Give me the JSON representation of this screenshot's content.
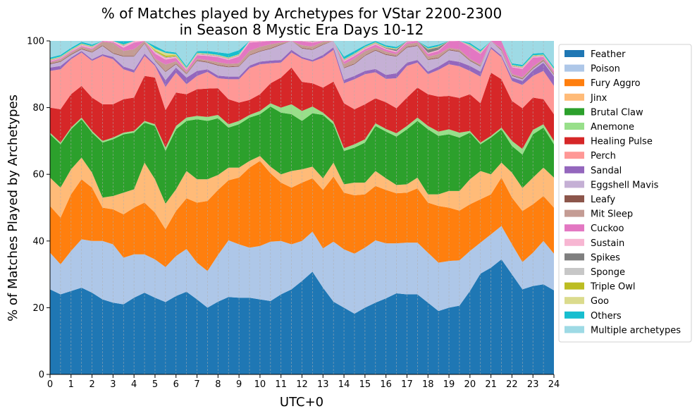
{
  "chart_data": {
    "type": "area",
    "stacked": true,
    "title": "% of Matches played by Archetypes for VStar 2200-2300\nin Season 8 Mystic Era Days 10-12",
    "xlabel": "UTC+0",
    "ylabel": "% of Matches Played by Archetypes",
    "xlim": [
      0,
      24
    ],
    "ylim": [
      0,
      100
    ],
    "x_ticks": [
      0,
      1,
      2,
      3,
      4,
      5,
      6,
      7,
      8,
      9,
      10,
      11,
      12,
      13,
      14,
      15,
      16,
      17,
      18,
      19,
      20,
      21,
      22,
      23,
      24
    ],
    "y_ticks": [
      0,
      20,
      40,
      60,
      80,
      100
    ],
    "grid": "vertical dashed at every half hour",
    "legend_position": "right, outside plot",
    "x": [
      0,
      0.5,
      1,
      1.5,
      2,
      2.5,
      3,
      3.5,
      4,
      4.5,
      5,
      5.5,
      6,
      6.5,
      7,
      7.5,
      8,
      8.5,
      9,
      9.5,
      10,
      10.5,
      11,
      11.5,
      12,
      12.5,
      13,
      13.5,
      14,
      14.5,
      15,
      15.5,
      16,
      16.5,
      17,
      17.5,
      18,
      18.5,
      19,
      19.5,
      20,
      20.5,
      21,
      21.5,
      22,
      22.5,
      23,
      23.5,
      24
    ],
    "series": [
      {
        "name": "Feather",
        "color": "#1f77b4",
        "values": [
          25.5,
          24,
          25,
          26,
          24.5,
          22.5,
          21.5,
          21,
          23,
          24.5,
          23,
          21.7,
          23.5,
          24.8,
          22.5,
          20,
          21.8,
          23.2,
          23,
          23,
          22.5,
          22,
          24,
          25.5,
          28,
          30.8,
          26,
          21.8,
          20,
          18.2,
          20,
          21.5,
          22.8,
          24.3,
          24,
          24,
          21.5,
          19,
          20,
          20.6,
          25,
          30.2,
          32,
          34.5,
          30,
          25.5,
          26.5,
          27,
          25.2
        ]
      },
      {
        "name": "Poison",
        "color": "#aec7e8",
        "values": [
          11,
          9,
          12,
          14.5,
          15.5,
          17.5,
          17.5,
          14,
          13,
          11.5,
          11.5,
          10.5,
          12,
          12.8,
          11,
          11,
          14,
          17,
          16,
          15,
          16,
          17.8,
          16,
          13.5,
          12,
          12,
          11.8,
          18,
          17.5,
          18,
          18,
          18.7,
          16.5,
          15,
          15.5,
          15.5,
          15,
          14.5,
          14,
          13.6,
          12,
          9.3,
          10,
          10,
          9,
          8.2,
          10,
          13,
          11
        ]
      },
      {
        "name": "Fury Aggro",
        "color": "#ff7f0e",
        "values": [
          14,
          14,
          17,
          18,
          16,
          10,
          10.5,
          13,
          14,
          15.5,
          14,
          11.3,
          13.5,
          15.2,
          18,
          21,
          19.5,
          18,
          20,
          24,
          25.5,
          20.5,
          17.5,
          17,
          17.5,
          16,
          17.5,
          19.5,
          17,
          17.5,
          16,
          16.3,
          16,
          15,
          15,
          16.3,
          15,
          17,
          16,
          14.9,
          14,
          13,
          12,
          14.5,
          14,
          15.3,
          14.5,
          13.5,
          13.8
        ]
      },
      {
        "name": "Jinx",
        "color": "#ffbb78",
        "values": [
          8.5,
          9,
          7.5,
          6.5,
          4.5,
          3,
          4,
          6.5,
          5.5,
          12,
          10,
          7.7,
          6.5,
          8.2,
          7,
          6.5,
          4.5,
          3.8,
          3,
          2,
          1.5,
          2,
          2.5,
          5,
          4,
          3.5,
          3.5,
          4.2,
          2.5,
          3.8,
          3.5,
          4.5,
          3.5,
          2.5,
          2.5,
          3.2,
          2.5,
          3.5,
          5,
          5.9,
          7.5,
          8.5,
          6,
          4.5,
          7.5,
          6.9,
          8,
          8.5,
          9
        ]
      },
      {
        "name": "Brutal Claw",
        "color": "#2ca02c",
        "values": [
          13,
          13,
          12,
          11.5,
          12,
          16.5,
          17,
          17.5,
          17,
          12,
          16,
          15.8,
          18,
          15,
          18,
          17.5,
          17,
          12,
          13,
          13,
          12.5,
          18,
          18.5,
          17,
          14.5,
          16,
          19,
          11.5,
          10,
          10.5,
          12,
          13.5,
          14,
          14.5,
          16.5,
          17,
          19.5,
          17.5,
          17,
          16,
          14,
          8,
          11,
          10,
          8,
          10,
          13,
          12,
          10
        ]
      },
      {
        "name": "Anemone",
        "color": "#98df8a",
        "values": [
          0.5,
          0.5,
          0.5,
          0.5,
          0.5,
          0.5,
          0.5,
          0.5,
          0.5,
          0.5,
          0.5,
          1,
          1,
          1,
          1,
          1.2,
          1,
          1,
          1,
          0.8,
          1,
          1,
          1.5,
          3,
          3,
          2,
          0.7,
          0.8,
          0.8,
          1,
          1,
          0.8,
          0.8,
          1,
          1,
          1,
          1,
          1.3,
          1.5,
          1.5,
          0.5,
          0.5,
          0.5,
          0.5,
          1.5,
          1.7,
          1.3,
          1,
          1
        ]
      },
      {
        "name": "Healing Pulse",
        "color": "#d62728",
        "values": [
          7.5,
          10,
          10,
          9.5,
          10,
          11,
          10,
          10,
          10,
          13.5,
          14,
          11.2,
          10,
          7,
          8,
          8.5,
          8,
          7.5,
          5.5,
          4.5,
          5,
          6,
          9,
          11,
          8.7,
          7,
          7.5,
          12,
          13.5,
          10.5,
          10.5,
          7.5,
          8,
          7.5,
          8.5,
          9,
          9.5,
          10.5,
          10,
          10.4,
          11,
          11.8,
          19,
          14.5,
          12,
          12.2,
          9.7,
          7.5,
          8
        ]
      },
      {
        "name": "Perch",
        "color": "#ff9896",
        "values": [
          11,
          12,
          10.5,
          10,
          11,
          14.5,
          13.5,
          9,
          7.5,
          6,
          3.5,
          7,
          6,
          3,
          4,
          5,
          3,
          6,
          7,
          9.5,
          9,
          6,
          4.5,
          4.5,
          7,
          6.5,
          9,
          9.5,
          6,
          9,
          9,
          7.8,
          7,
          9,
          9.5,
          7.5,
          6,
          8,
          9.5,
          9.5,
          7,
          8,
          7.2,
          6.6,
          6,
          7,
          6.5,
          8.5,
          8.5
        ]
      },
      {
        "name": "Sandal",
        "color": "#9467bd",
        "values": [
          1,
          1,
          0.5,
          0.5,
          0.5,
          0.5,
          0.7,
          0.8,
          0.8,
          0.7,
          0.5,
          2,
          1.5,
          2,
          1.5,
          0.8,
          0.8,
          0.8,
          0.8,
          0.8,
          0.8,
          0.8,
          0.8,
          0.8,
          0.5,
          0.5,
          0.8,
          0.8,
          1,
          1,
          1,
          1,
          1.2,
          1.5,
          1,
          0.8,
          0.8,
          1,
          1.2,
          1.3,
          1.5,
          1.5,
          0.5,
          0.5,
          1,
          1.2,
          1.7,
          2.5,
          2.8
        ]
      },
      {
        "name": "Eggshell Mavis",
        "color": "#c5b0d5",
        "values": [
          1,
          1.2,
          0.8,
          0.5,
          2,
          2.5,
          1,
          3,
          4,
          3,
          1,
          2.5,
          1,
          1,
          3,
          2,
          3,
          2.8,
          3,
          3,
          3,
          3.5,
          4.5,
          4,
          2.5,
          3,
          3,
          3,
          3.5,
          3.5,
          4.5,
          5.5,
          6,
          5,
          4.5,
          4.2,
          3.5,
          2.5,
          3,
          3,
          1.5,
          1.5,
          2.1,
          1.5,
          0.5,
          0.5,
          0.5,
          0.5,
          0.5
        ]
      },
      {
        "name": "Leafy",
        "color": "#8c564b",
        "values": [
          0.2,
          0.2,
          0.2,
          0.2,
          0.2,
          0.2,
          0.2,
          0.2,
          0.2,
          0.2,
          0.2,
          0.2,
          0.2,
          0.2,
          0.2,
          0.2,
          0.2,
          0.2,
          0.2,
          0.2,
          0.2,
          0.2,
          0.2,
          0.2,
          0.2,
          0.2,
          0.2,
          0.2,
          0.2,
          0.2,
          0.2,
          0.2,
          0.2,
          0.2,
          0.2,
          0.2,
          0.2,
          0.2,
          0.2,
          0.2,
          0.2,
          0.2,
          0.2,
          0.2,
          0.2,
          0.2,
          0.2,
          0.2,
          0.2
        ]
      },
      {
        "name": "Mit Sleep",
        "color": "#c49c94",
        "values": [
          0.4,
          0.5,
          0.5,
          0.5,
          0.7,
          1,
          3,
          1.5,
          2,
          2,
          0.5,
          2,
          0.7,
          0.5,
          0.5,
          0.5,
          0.8,
          0.8,
          0.8,
          1.2,
          1.2,
          1.2,
          0.5,
          0.5,
          0.8,
          0.8,
          0.8,
          0.5,
          1,
          1.5,
          1.2,
          0.8,
          0.8,
          0.5,
          0.8,
          0.8,
          0.8,
          1,
          0.5,
          0.5,
          0.4,
          0.4,
          0.4,
          0.4,
          0.4,
          0.4,
          0.4,
          0.4,
          0.4
        ]
      },
      {
        "name": "Cuckoo",
        "color": "#e377c2",
        "values": [
          0.3,
          0.3,
          0.3,
          0.3,
          0.3,
          0.3,
          0.3,
          1,
          2,
          1.3,
          1.5,
          1.5,
          1,
          0.5,
          1,
          1.3,
          1.5,
          1.2,
          2,
          2.5,
          1.5,
          1.5,
          1.5,
          1,
          1.2,
          1.2,
          1,
          0.5,
          0.8,
          0.8,
          0.6,
          0.8,
          0.6,
          0.6,
          0.6,
          0.8,
          0.8,
          1,
          2,
          2.8,
          3.6,
          3.2,
          3.5,
          4,
          2,
          2.5,
          2.7,
          0.6,
          0.6
        ]
      },
      {
        "name": "Sustain",
        "color": "#f7b6d2",
        "values": [
          0.2,
          0.2,
          0.2,
          0.3,
          0.3,
          0.3,
          0.5,
          0.5,
          0.5,
          0.3,
          0.5,
          0.5,
          0.3,
          0.3,
          0.3,
          0.3,
          0.3,
          0.3,
          0.3,
          0.5,
          0.5,
          0.5,
          0.3,
          0.3,
          0.3,
          0.3,
          0.3,
          0.3,
          0.3,
          0.3,
          0.3,
          0.3,
          0.3,
          0.3,
          0.3,
          0.3,
          0.3,
          0.3,
          0.3,
          0.3,
          0.3,
          0.3,
          0.3,
          0.3,
          0.3,
          0.3,
          0.3,
          0.3,
          0.3
        ]
      },
      {
        "name": "Spikes",
        "color": "#7f7f7f",
        "values": [
          0.1,
          0.1,
          0.1,
          0.1,
          0.1,
          0.1,
          0.1,
          0.1,
          0.1,
          0.1,
          0.1,
          0.1,
          0.1,
          0.1,
          0.1,
          0.1,
          0.1,
          0.1,
          0.1,
          0.1,
          0.1,
          0.1,
          0.1,
          0.1,
          0.1,
          0.1,
          0.1,
          0.1,
          0.1,
          0.1,
          0.1,
          0.1,
          0.2,
          0.5,
          1,
          1.5,
          1,
          0.8,
          0.3,
          0.1,
          0.1,
          0.1,
          0.1,
          0.1,
          0.1,
          0.1,
          0.1,
          0.1,
          0.1
        ]
      },
      {
        "name": "Sponge",
        "color": "#c7c7c7",
        "values": [
          0.1,
          0.1,
          0.1,
          0.1,
          0.1,
          0.1,
          0.1,
          0.1,
          0.1,
          0.1,
          0.1,
          0.1,
          0.1,
          0.1,
          0.1,
          0.1,
          0.1,
          0.1,
          0.1,
          0.1,
          0.1,
          0.1,
          0.1,
          0.1,
          0.1,
          0.1,
          0.1,
          0.1,
          0.1,
          0.1,
          0.1,
          0.1,
          0.1,
          0.1,
          0.1,
          0.1,
          0.1,
          0.1,
          0.1,
          0.1,
          0.1,
          0.1,
          0.1,
          0.1,
          0.1,
          0.1,
          0.1,
          0.1,
          0.1
        ]
      },
      {
        "name": "Triple Owl",
        "color": "#bcbd22",
        "values": [
          0.1,
          0.1,
          0.1,
          0.1,
          0.1,
          0.1,
          0.1,
          0.1,
          0.1,
          0.1,
          0.3,
          0.5,
          0.3,
          0.1,
          0.1,
          0.1,
          0.1,
          0.1,
          0.1,
          0.1,
          0.1,
          0.3,
          0.1,
          0.1,
          0.1,
          0.1,
          0.1,
          0.1,
          0.1,
          0.1,
          0.1,
          0.1,
          0.1,
          0.1,
          0.1,
          0.1,
          0.1,
          0.1,
          0.1,
          0.1,
          0.1,
          0.1,
          0.1,
          0.1,
          0.1,
          0.1,
          0.1,
          0.1,
          0.1
        ]
      },
      {
        "name": "Goo",
        "color": "#dbdb8d",
        "values": [
          0.1,
          0.1,
          0.1,
          0.1,
          0.1,
          0.1,
          0.1,
          0.1,
          0.1,
          0.1,
          0.5,
          0.8,
          0.3,
          0.1,
          0.1,
          0.1,
          0.1,
          0.1,
          0.1,
          0.1,
          0.1,
          0.3,
          0.1,
          0.1,
          0.1,
          0.1,
          0.1,
          0.1,
          0.1,
          0.1,
          0.1,
          0.1,
          0.1,
          0.1,
          0.1,
          0.1,
          0.1,
          0.1,
          0.1,
          0.1,
          0.1,
          0.1,
          0.1,
          0.1,
          0.1,
          0.1,
          0.1,
          0.1,
          0.1
        ]
      },
      {
        "name": "Others",
        "color": "#17becf",
        "values": [
          0.5,
          0.5,
          0.5,
          0.5,
          0.5,
          0.5,
          0.8,
          1,
          0.8,
          0.5,
          0.8,
          0.5,
          0.5,
          0.5,
          0.5,
          0.8,
          0.8,
          1.2,
          1.2,
          1,
          0.8,
          0.5,
          0.5,
          0.5,
          0.5,
          0.5,
          0.5,
          0.5,
          0.8,
          0.8,
          0.5,
          0.5,
          0.5,
          0.5,
          0.5,
          0.5,
          0.5,
          0.5,
          0.5,
          0.5,
          0.5,
          0.5,
          0.5,
          0.5,
          0.5,
          0.5,
          0.5,
          0.5,
          0.5
        ]
      },
      {
        "name": "Multiple archetypes",
        "color": "#9edae5",
        "values": "rest"
      }
    ]
  }
}
